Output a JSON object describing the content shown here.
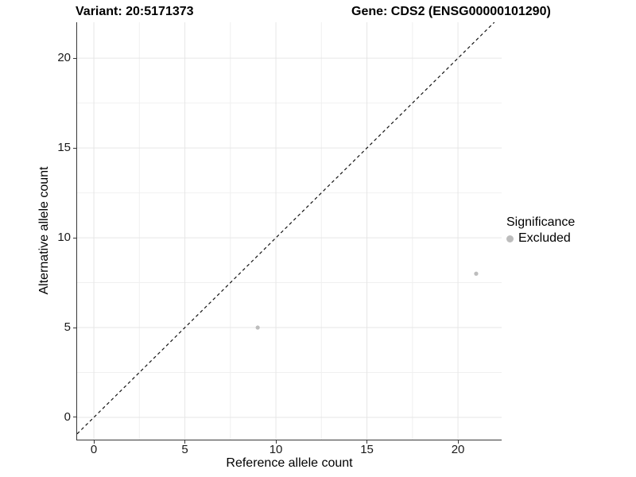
{
  "titles": {
    "left": "Variant: 20:5171373",
    "right": "Gene: CDS2 (ENSG00000101290)"
  },
  "legend": {
    "title": "Significance",
    "items": [
      {
        "label": "Excluded",
        "color": "#bdbdbd"
      }
    ]
  },
  "chart_data": {
    "type": "scatter",
    "title": "Variant: 20:5171373 — Gene: CDS2 (ENSG00000101290)",
    "xlabel": "Reference allele count",
    "ylabel": "Alternative allele count",
    "xlim": [
      -0.92,
      22.4
    ],
    "ylim": [
      -1.24,
      22.0
    ],
    "x_ticks": [
      0,
      5,
      10,
      15,
      20
    ],
    "y_ticks": [
      0,
      5,
      10,
      15,
      20
    ],
    "x_minor": [
      2.5,
      7.5,
      12.5,
      17.5
    ],
    "y_minor": [
      2.5,
      7.5,
      12.5,
      17.5
    ],
    "grid": true,
    "legend_position": "right",
    "series": [
      {
        "name": "Excluded",
        "color": "#bdbdbd",
        "points": [
          {
            "x": 9,
            "y": 5
          },
          {
            "x": 21,
            "y": 8
          }
        ]
      }
    ],
    "reference_line": {
      "type": "identity y=x",
      "style": "dashed",
      "color": "#141414"
    }
  },
  "colors": {
    "grid_major": "#e6e6e6",
    "grid_minor": "#f0f0f0",
    "axis_line": "#383838",
    "tick_label": "#1a1a1a",
    "point": "#bdbdbd"
  }
}
